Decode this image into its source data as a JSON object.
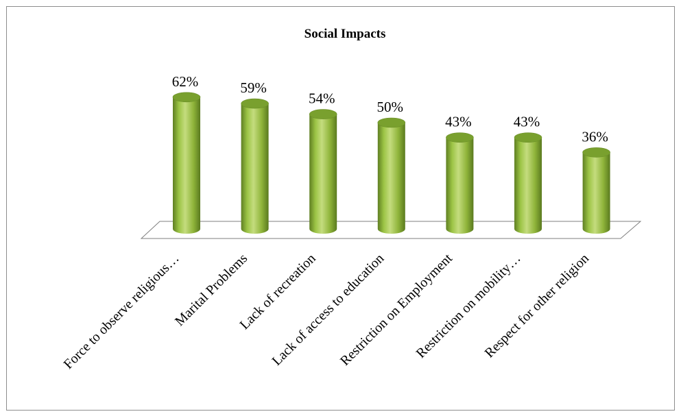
{
  "chart_data": {
    "type": "bar",
    "title": "Social Impacts",
    "categories": [
      "Force to observe religious…",
      "Marital Problems",
      "Lack of recreation",
      "Lack of access to education",
      "Restriction on Employment",
      "Restriction on mobility…",
      "Respect for other religion"
    ],
    "values": [
      62,
      59,
      54,
      50,
      43,
      43,
      36
    ],
    "data_labels": [
      "62%",
      "59%",
      "54%",
      "50%",
      "43%",
      "43%",
      "36%"
    ],
    "ylim": [
      0,
      70
    ],
    "grid": false,
    "legend": "none",
    "bar_style": "3d-cylinder",
    "colors": {
      "bar": "#92b83f",
      "bar_dark": "#5f7f22",
      "bar_light": "#c4dc7e",
      "top": "#79a02e"
    }
  }
}
